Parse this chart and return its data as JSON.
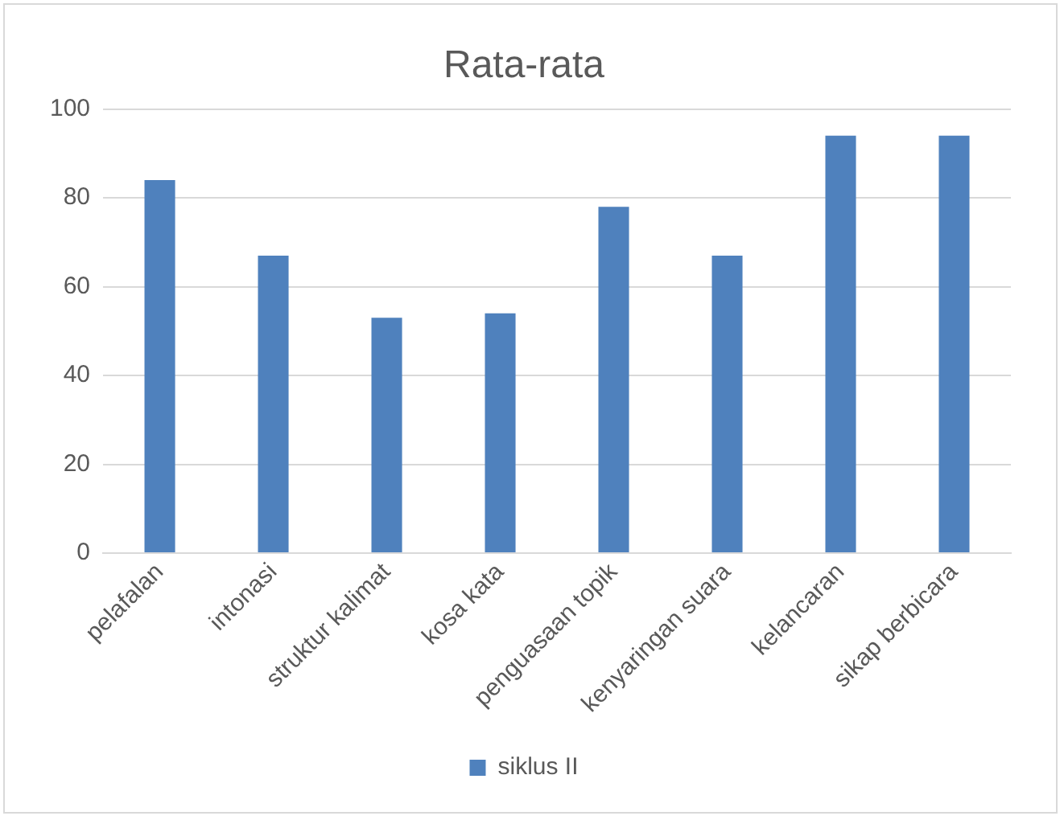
{
  "chart_data": {
    "type": "bar",
    "title": "Rata-rata",
    "categories": [
      "pelafalan",
      "intonasi",
      "struktur kalimat",
      "kosa kata",
      "penguasaan topik",
      "kenyaringan suara",
      "kelancaran",
      "sikap berbicara"
    ],
    "series": [
      {
        "name": "siklus II",
        "color": "#4f81bd",
        "values": [
          84,
          67,
          53,
          54,
          78,
          67,
          94,
          94
        ]
      }
    ],
    "ylim": [
      0,
      100
    ],
    "yticks": [
      0,
      20,
      40,
      60,
      80,
      100
    ],
    "grid": "y",
    "legend": "bottom"
  }
}
